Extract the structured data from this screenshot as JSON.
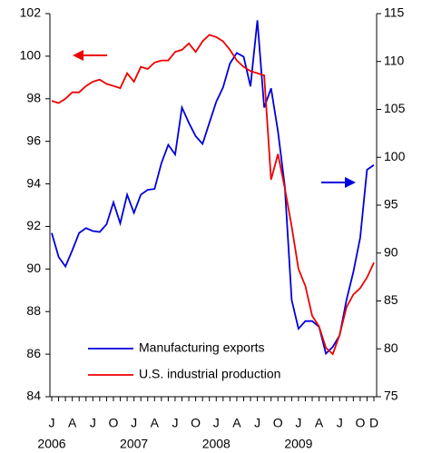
{
  "chart_data": {
    "type": "line",
    "categories": [
      "J",
      null,
      null,
      "A",
      null,
      null,
      "J",
      null,
      null,
      "O",
      null,
      null,
      "J",
      null,
      null,
      "A",
      null,
      null,
      "J",
      null,
      null,
      "O",
      null,
      null,
      "J",
      null,
      null,
      "A",
      null,
      null,
      "J",
      null,
      null,
      "O",
      null,
      null,
      "J",
      null,
      null,
      "A",
      null,
      null,
      "J",
      null,
      null,
      "O",
      null,
      "D"
    ],
    "years": [
      "2006",
      "2007",
      "2008",
      "2009"
    ],
    "series": [
      {
        "name": "Manufacturing exports",
        "color": "#0000dd",
        "axis": "y2",
        "values": [
          92.1,
          89.6,
          88.6,
          90.3,
          92.1,
          92.6,
          92.3,
          92.2,
          93.0,
          95.3,
          93.1,
          96.1,
          94.2,
          96.1,
          96.6,
          96.7,
          99.4,
          101.3,
          100.3,
          105.2,
          103.6,
          102.2,
          101.4,
          103.6,
          105.8,
          107.3,
          109.8,
          110.9,
          110.5,
          107.4,
          114.3,
          105.2,
          107.2,
          102.7,
          97.0,
          85.1,
          82.1,
          82.9,
          82.9,
          82.3,
          79.5,
          80.2,
          81.4,
          85.1,
          88.0,
          91.6,
          98.7,
          99.2
        ]
      },
      {
        "name": "U.S. industrial production",
        "color": "#ee0000",
        "axis": "y",
        "values": [
          97.9,
          97.8,
          98.0,
          98.3,
          98.3,
          98.6,
          98.8,
          98.9,
          98.7,
          98.6,
          98.5,
          99.2,
          98.8,
          99.5,
          99.4,
          99.7,
          99.8,
          99.8,
          100.2,
          100.3,
          100.6,
          100.2,
          100.7,
          101.0,
          100.9,
          100.7,
          100.3,
          99.8,
          99.5,
          99.3,
          99.2,
          99.1,
          94.2,
          95.4,
          93.8,
          92.0,
          90.0,
          89.2,
          87.8,
          87.3,
          86.3,
          86.0,
          86.9,
          88.2,
          88.8,
          89.1,
          89.6,
          90.3
        ]
      }
    ],
    "ylim": [
      84,
      102
    ],
    "yticks": [
      84,
      86,
      88,
      90,
      92,
      94,
      96,
      98,
      100,
      102
    ],
    "y2lim": [
      75,
      115
    ],
    "y2ticks": [
      75,
      80,
      85,
      90,
      95,
      100,
      105,
      110,
      115
    ],
    "legend": "lower left"
  }
}
